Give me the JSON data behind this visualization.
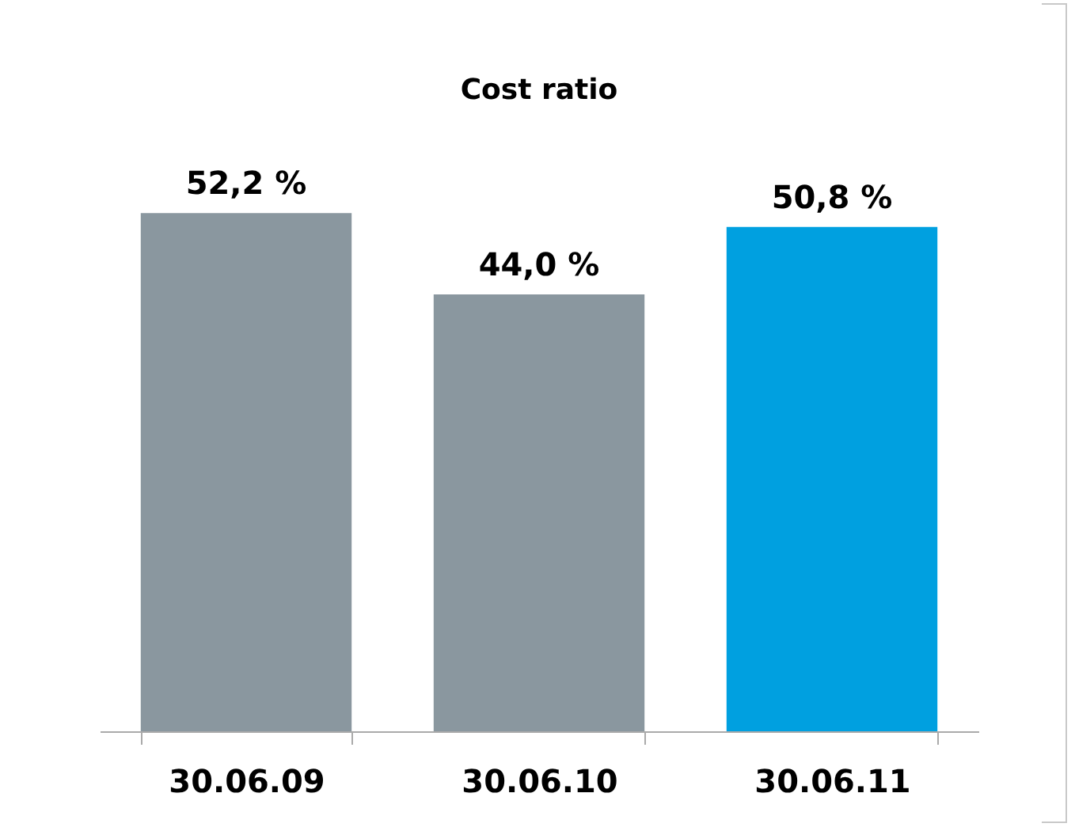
{
  "chart_data": {
    "type": "bar",
    "title": "Cost ratio",
    "tick_labels": "x",
    "categories": [
      "30.06.09",
      "30.06.10",
      "30.06.11"
    ],
    "values": [
      52.2,
      44.0,
      50.8
    ],
    "value_labels": [
      "52,2 %",
      "44,0 %",
      "50,8 %"
    ],
    "colors": [
      "#8a979f",
      "#8a979f",
      "#00a0e0"
    ]
  }
}
